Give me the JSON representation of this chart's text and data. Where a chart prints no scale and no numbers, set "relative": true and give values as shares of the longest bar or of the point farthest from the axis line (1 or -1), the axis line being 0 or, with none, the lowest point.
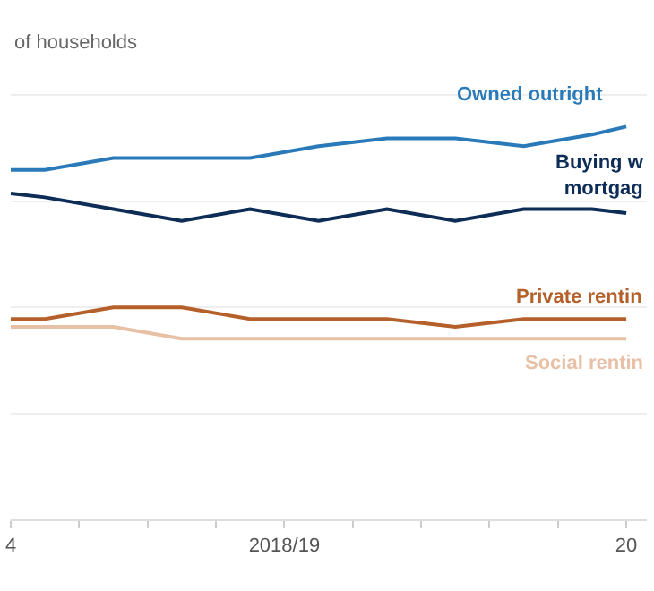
{
  "chart_data": {
    "type": "line",
    "relative": true,
    "ylabel": "of households",
    "categories": [
      "4",
      null,
      null,
      null,
      null,
      null,
      null,
      null,
      "2018/19",
      null,
      null,
      null,
      null,
      null,
      null,
      null,
      null,
      null,
      "20"
    ],
    "series": [
      {
        "name": "Owned outright",
        "color": "#2a7ab9",
        "values": [
          0.89,
          0.89,
          null,
          0.92,
          null,
          0.92,
          null,
          0.92,
          null,
          0.95,
          null,
          0.97,
          null,
          0.97,
          null,
          0.95,
          null,
          0.98,
          1
        ]
      },
      {
        "name": "Buying w\nmortgag",
        "color": "#0d2d57",
        "values": [
          0.83,
          0.82,
          null,
          0.79,
          null,
          0.76,
          null,
          0.79,
          null,
          0.76,
          null,
          0.79,
          null,
          0.76,
          null,
          0.79,
          null,
          0.79,
          0.78
        ]
      },
      {
        "name": "Private rentin",
        "color": "#b5602a",
        "values": [
          0.51,
          0.51,
          null,
          0.54,
          null,
          0.54,
          null,
          0.51,
          null,
          0.51,
          null,
          0.51,
          null,
          0.49,
          null,
          0.51,
          null,
          0.51,
          0.51
        ]
      },
      {
        "name": "Social rentin",
        "color": "#e8c0a6",
        "values": [
          0.49,
          0.49,
          null,
          0.49,
          null,
          0.46,
          null,
          0.46,
          null,
          0.46,
          null,
          0.46,
          null,
          0.46,
          null,
          0.46,
          null,
          0.46,
          0.46
        ]
      }
    ],
    "grid": "y",
    "legend": false,
    "marker": "none",
    "line_style": "solid"
  }
}
